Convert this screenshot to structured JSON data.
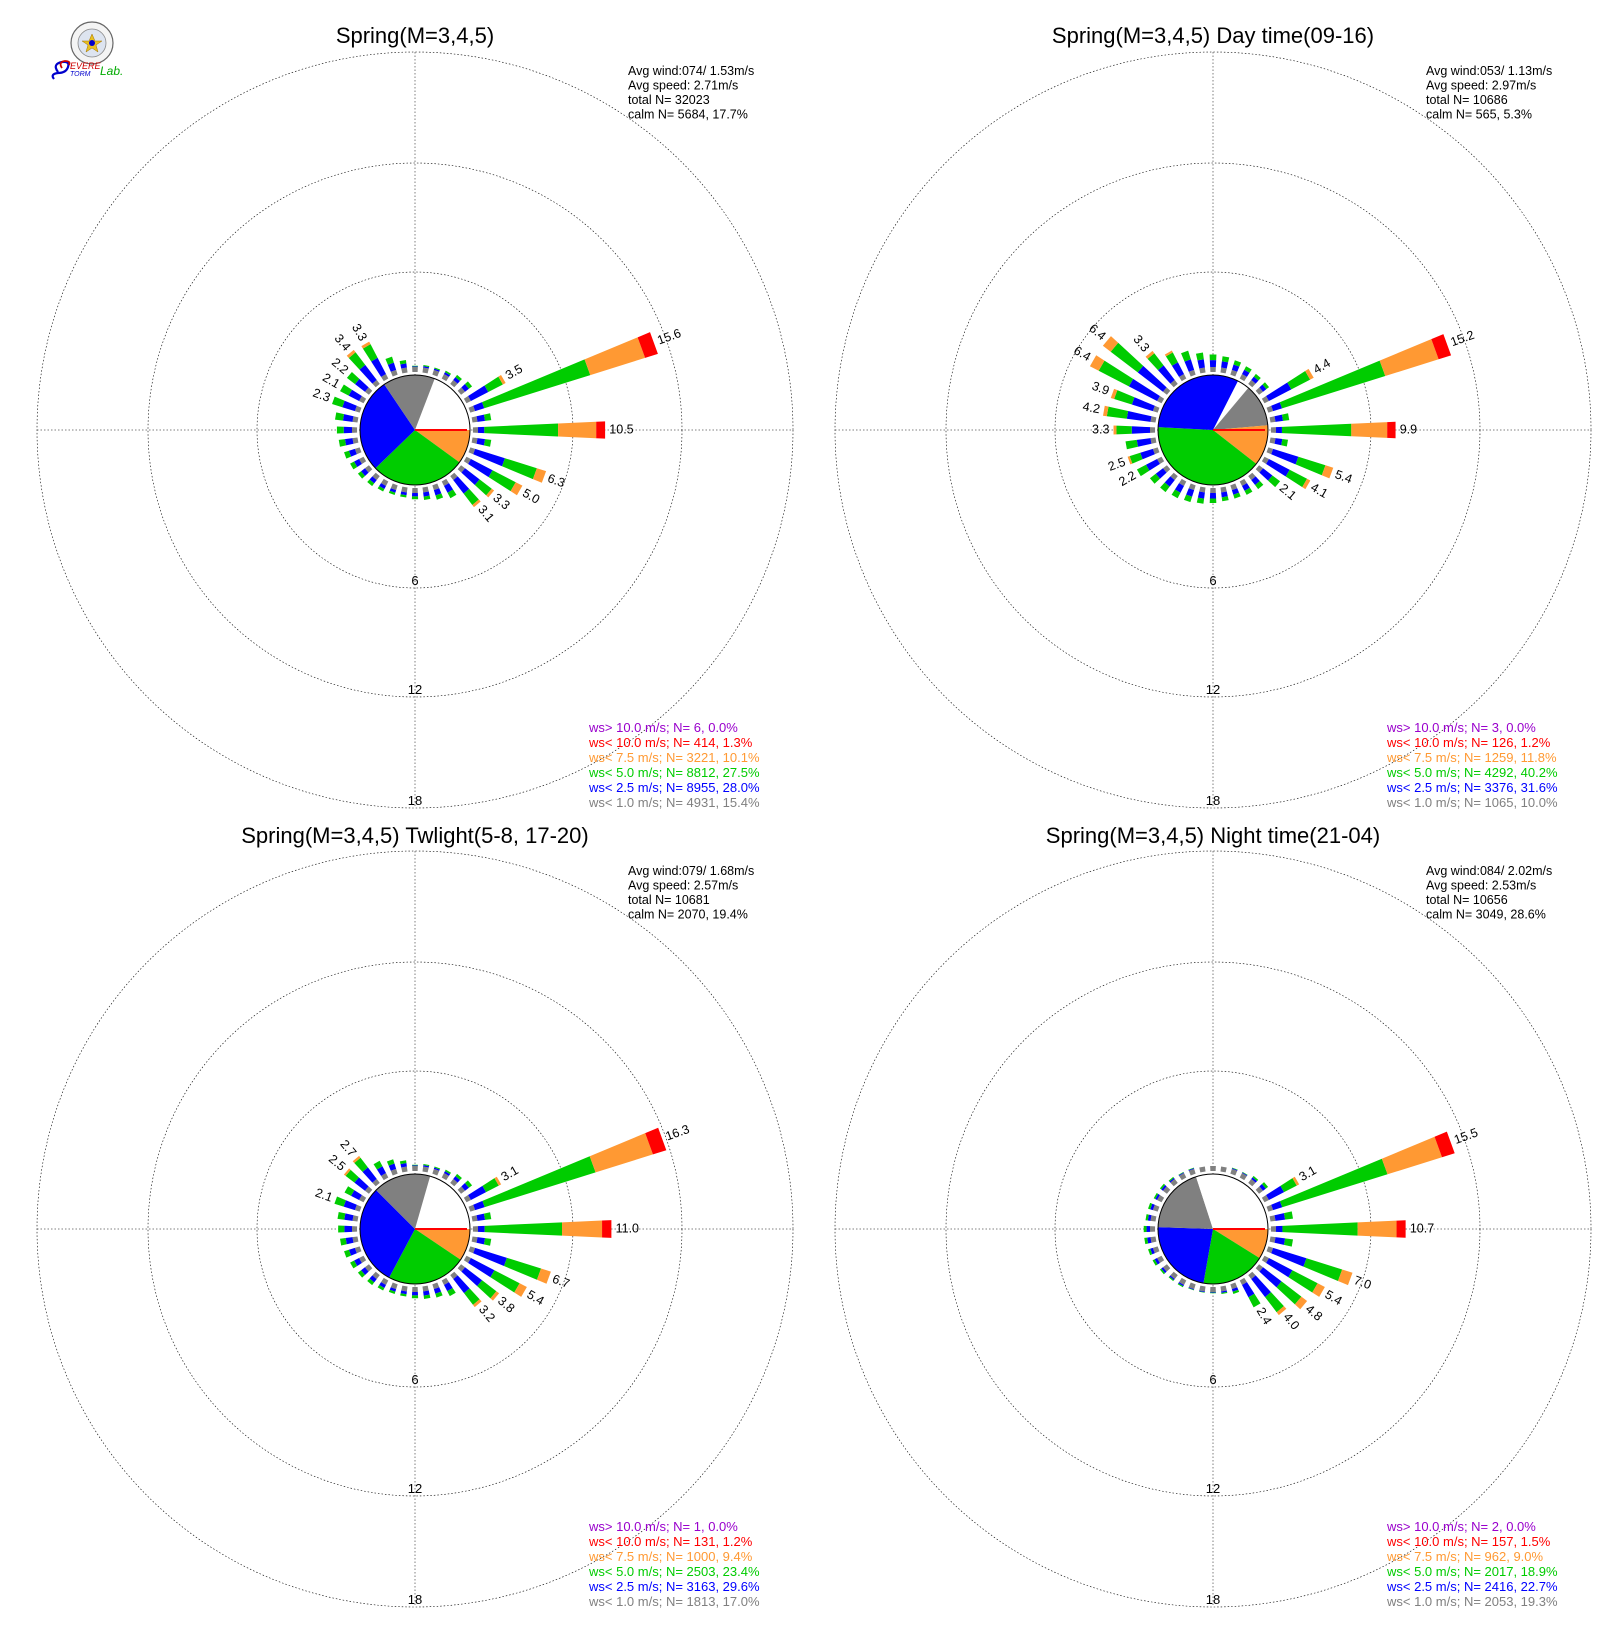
{
  "logo": {
    "text": "Severe Storm Lab.",
    "colors": {
      "blue": "#0000cc",
      "red": "#cc0000",
      "green": "#00aa00",
      "gold": "#e8c020"
    }
  },
  "colors": {
    "ws_gt10": "#9900cc",
    "ws_lt10": "#ff0000",
    "ws_lt75": "#ff9933",
    "ws_lt50": "#00cc00",
    "ws_lt25": "#0000ff",
    "ws_lt10calm": "#808080",
    "grid": "#000000"
  },
  "chart_data": [
    {
      "type": "polar-bar",
      "title": "Spring(M=3,4,5)",
      "ring_labels": [
        "6",
        "12",
        "18"
      ],
      "ring_values": [
        6,
        12,
        18
      ],
      "stats": [
        "Avg wind:074/ 1.53m/s",
        "Avg speed: 2.71m/s",
        "total N=     32023",
        "calm N=   5684,  17.7%"
      ],
      "legend": [
        {
          "label": "ws> 10.0 m/s; N=    6,  0.0%",
          "color": "#9900cc"
        },
        {
          "label": "ws< 10.0 m/s; N=  414,  1.3%",
          "color": "#ff0000"
        },
        {
          "label": "ws<  7.5 m/s; N= 3221, 10.1%",
          "color": "#ff9933"
        },
        {
          "label": "ws<  5.0 m/s; N= 8812, 27.5%",
          "color": "#00cc00"
        },
        {
          "label": "ws<  2.5 m/s; N= 8955, 28.0%",
          "color": "#0000ff"
        },
        {
          "label": "ws<  1.0 m/s; N= 4931, 15.4%",
          "color": "#808080"
        }
      ],
      "pie": [
        {
          "from": 0,
          "to": 90,
          "color": "#ffffff"
        },
        {
          "from": 90,
          "to": 126,
          "color": "#ff9933"
        },
        {
          "from": 126,
          "to": 226,
          "color": "#00cc00"
        },
        {
          "from": 226,
          "to": 326,
          "color": "#0000ff"
        },
        {
          "from": 326,
          "to": 381,
          "color": "#808080"
        }
      ],
      "bars": [
        {
          "dir": 0,
          "total": 0.5
        },
        {
          "dir": 10,
          "total": 0.6
        },
        {
          "dir": 20,
          "total": 0.6
        },
        {
          "dir": 30,
          "total": 0.7
        },
        {
          "dir": 40,
          "total": 0.9
        },
        {
          "dir": 50,
          "total": 1.1
        },
        {
          "dir": 60,
          "total": 3.5,
          "label": "3.5"
        },
        {
          "dir": 70,
          "total": 15.6,
          "label": "15.6"
        },
        {
          "dir": 80,
          "total": 1.5
        },
        {
          "dir": 90,
          "total": 10.5,
          "label": "10.5"
        },
        {
          "dir": 100,
          "total": 1.5
        },
        {
          "dir": 110,
          "total": 6.3,
          "label": "6.3"
        },
        {
          "dir": 120,
          "total": 5.0,
          "label": "5.0"
        },
        {
          "dir": 130,
          "total": 3.3,
          "label": "3.3"
        },
        {
          "dir": 140,
          "total": 3.1,
          "label": "3.1"
        },
        {
          "dir": 150,
          "total": 1.5
        },
        {
          "dir": 160,
          "total": 1.2
        },
        {
          "dir": 170,
          "total": 1.0
        },
        {
          "dir": 180,
          "total": 0.9
        },
        {
          "dir": 190,
          "total": 0.8
        },
        {
          "dir": 200,
          "total": 0.8
        },
        {
          "dir": 210,
          "total": 0.9
        },
        {
          "dir": 220,
          "total": 1.0
        },
        {
          "dir": 230,
          "total": 1.1
        },
        {
          "dir": 240,
          "total": 1.2
        },
        {
          "dir": 250,
          "total": 1.3
        },
        {
          "dir": 260,
          "total": 1.5
        },
        {
          "dir": 270,
          "total": 1.6
        },
        {
          "dir": 280,
          "total": 1.8
        },
        {
          "dir": 290,
          "total": 2.3,
          "label": "2.3"
        },
        {
          "dir": 300,
          "total": 2.1,
          "label": "2.1"
        },
        {
          "dir": 310,
          "total": 2.2,
          "label": "2.2"
        },
        {
          "dir": 320,
          "total": 3.4,
          "label": "3.4"
        },
        {
          "dir": 330,
          "total": 3.3,
          "label": "3.3"
        },
        {
          "dir": 340,
          "total": 1.5
        },
        {
          "dir": 350,
          "total": 1.0
        }
      ]
    },
    {
      "type": "polar-bar",
      "title": "Spring(M=3,4,5) Day time(09-16)",
      "ring_labels": [
        "6",
        "12",
        "18"
      ],
      "ring_values": [
        6,
        12,
        18
      ],
      "stats": [
        "Avg wind:053/ 1.13m/s",
        "Avg speed: 2.97m/s",
        "total N=     10686",
        "calm N=    565,   5.3%"
      ],
      "legend": [
        {
          "label": "ws> 10.0 m/s; N=    3,  0.0%",
          "color": "#9900cc"
        },
        {
          "label": "ws< 10.0 m/s; N=  126,  1.2%",
          "color": "#ff0000"
        },
        {
          "label": "ws<  7.5 m/s; N= 1259, 11.8%",
          "color": "#ff9933"
        },
        {
          "label": "ws<  5.0 m/s; N= 4292, 40.2%",
          "color": "#00cc00"
        },
        {
          "label": "ws<  2.5 m/s; N= 3376, 31.6%",
          "color": "#0000ff"
        },
        {
          "label": "ws<  1.0 m/s; N= 1065, 10.0%",
          "color": "#808080"
        }
      ],
      "pie": [
        {
          "from": 0,
          "to": 40,
          "color": "#ffffff"
        },
        {
          "from": 40,
          "to": 85,
          "color": "#808080"
        },
        {
          "from": 85,
          "to": 128,
          "color": "#ff9933"
        },
        {
          "from": 128,
          "to": 273,
          "color": "#00cc00"
        },
        {
          "from": 273,
          "to": 387,
          "color": "#0000ff"
        }
      ],
      "bars": [
        {
          "dir": 0,
          "total": 1.4
        },
        {
          "dir": 10,
          "total": 1.3
        },
        {
          "dir": 20,
          "total": 1.2
        },
        {
          "dir": 30,
          "total": 1.1
        },
        {
          "dir": 40,
          "total": 1.0
        },
        {
          "dir": 50,
          "total": 1.0
        },
        {
          "dir": 60,
          "total": 4.4,
          "label": "4.4"
        },
        {
          "dir": 70,
          "total": 15.2,
          "label": "15.2"
        },
        {
          "dir": 80,
          "total": 1.5
        },
        {
          "dir": 90,
          "total": 9.9,
          "label": "9.9"
        },
        {
          "dir": 100,
          "total": 1.4
        },
        {
          "dir": 110,
          "total": 5.4,
          "label": "5.4"
        },
        {
          "dir": 120,
          "total": 4.1,
          "label": "4.1"
        },
        {
          "dir": 130,
          "total": 2.1,
          "label": "2.1"
        },
        {
          "dir": 140,
          "total": 1.3
        },
        {
          "dir": 150,
          "total": 1.2
        },
        {
          "dir": 160,
          "total": 1.1
        },
        {
          "dir": 170,
          "total": 1.1
        },
        {
          "dir": 180,
          "total": 1.2
        },
        {
          "dir": 190,
          "total": 1.3
        },
        {
          "dir": 200,
          "total": 1.4
        },
        {
          "dir": 210,
          "total": 1.5
        },
        {
          "dir": 220,
          "total": 1.6
        },
        {
          "dir": 230,
          "total": 1.7
        },
        {
          "dir": 240,
          "total": 2.2,
          "label": "2.2"
        },
        {
          "dir": 250,
          "total": 2.5,
          "label": "2.5"
        },
        {
          "dir": 260,
          "total": 2.4
        },
        {
          "dir": 270,
          "total": 3.3,
          "label": "3.3"
        },
        {
          "dir": 280,
          "total": 4.2,
          "label": "4.2"
        },
        {
          "dir": 290,
          "total": 3.9,
          "label": "3.9"
        },
        {
          "dir": 300,
          "total": 6.4,
          "label": "6.4"
        },
        {
          "dir": 310,
          "total": 6.4,
          "label": "6.4"
        },
        {
          "dir": 320,
          "total": 3.3,
          "label": "3.3"
        },
        {
          "dir": 330,
          "total": 2.5
        },
        {
          "dir": 340,
          "total": 2.0
        },
        {
          "dir": 350,
          "total": 1.6
        }
      ]
    },
    {
      "type": "polar-bar",
      "title": "Spring(M=3,4,5) Twlight(5-8, 17-20)",
      "ring_labels": [
        "6",
        "12",
        "18"
      ],
      "ring_values": [
        6,
        12,
        18
      ],
      "stats": [
        "Avg wind:079/ 1.68m/s",
        "Avg speed: 2.57m/s",
        "total N=     10681",
        "calm N=   2070,  19.4%"
      ],
      "legend": [
        {
          "label": "ws> 10.0 m/s; N=    1,  0.0%",
          "color": "#9900cc"
        },
        {
          "label": "ws< 10.0 m/s; N=  131,  1.2%",
          "color": "#ff0000"
        },
        {
          "label": "ws<  7.5 m/s; N= 1000,  9.4%",
          "color": "#ff9933"
        },
        {
          "label": "ws<  5.0 m/s; N= 2503, 23.4%",
          "color": "#00cc00"
        },
        {
          "label": "ws<  2.5 m/s; N= 3163, 29.6%",
          "color": "#0000ff"
        },
        {
          "label": "ws<  1.0 m/s; N= 1813, 17.0%",
          "color": "#808080"
        }
      ],
      "pie": [
        {
          "from": 0,
          "to": 90,
          "color": "#ffffff"
        },
        {
          "from": 90,
          "to": 124,
          "color": "#ff9933"
        },
        {
          "from": 124,
          "to": 208,
          "color": "#00cc00"
        },
        {
          "from": 208,
          "to": 315,
          "color": "#0000ff"
        },
        {
          "from": 315,
          "to": 376,
          "color": "#808080"
        }
      ],
      "bars": [
        {
          "dir": 0,
          "total": 0.5
        },
        {
          "dir": 10,
          "total": 0.6
        },
        {
          "dir": 20,
          "total": 0.6
        },
        {
          "dir": 30,
          "total": 0.7
        },
        {
          "dir": 40,
          "total": 0.9
        },
        {
          "dir": 50,
          "total": 1.1
        },
        {
          "dir": 60,
          "total": 3.1,
          "label": "3.1"
        },
        {
          "dir": 70,
          "total": 16.3,
          "label": "16.3"
        },
        {
          "dir": 80,
          "total": 1.5
        },
        {
          "dir": 90,
          "total": 11.0,
          "label": "11.0"
        },
        {
          "dir": 100,
          "total": 1.5
        },
        {
          "dir": 110,
          "total": 6.7,
          "label": "6.7"
        },
        {
          "dir": 120,
          "total": 5.4,
          "label": "5.4"
        },
        {
          "dir": 130,
          "total": 3.8,
          "label": "3.8"
        },
        {
          "dir": 140,
          "total": 3.2,
          "label": "3.2"
        },
        {
          "dir": 150,
          "total": 1.4
        },
        {
          "dir": 160,
          "total": 1.1
        },
        {
          "dir": 170,
          "total": 1.0
        },
        {
          "dir": 180,
          "total": 0.9
        },
        {
          "dir": 190,
          "total": 0.8
        },
        {
          "dir": 200,
          "total": 0.8
        },
        {
          "dir": 210,
          "total": 0.9
        },
        {
          "dir": 220,
          "total": 1.0
        },
        {
          "dir": 230,
          "total": 1.1
        },
        {
          "dir": 240,
          "total": 1.2
        },
        {
          "dir": 250,
          "total": 1.3
        },
        {
          "dir": 260,
          "total": 1.4
        },
        {
          "dir": 270,
          "total": 1.5
        },
        {
          "dir": 280,
          "total": 1.6
        },
        {
          "dir": 290,
          "total": 2.1,
          "label": "2.1"
        },
        {
          "dir": 300,
          "total": 1.7
        },
        {
          "dir": 310,
          "total": 2.5,
          "label": "2.5"
        },
        {
          "dir": 320,
          "total": 2.7,
          "label": "2.7"
        },
        {
          "dir": 330,
          "total": 1.5
        },
        {
          "dir": 340,
          "total": 1.2
        },
        {
          "dir": 350,
          "total": 0.9
        }
      ]
    },
    {
      "type": "polar-bar",
      "title": "Spring(M=3,4,5) Night time(21-04)",
      "ring_labels": [
        "6",
        "12",
        "18"
      ],
      "ring_values": [
        6,
        12,
        18
      ],
      "stats": [
        "Avg wind:084/ 2.02m/s",
        "Avg speed: 2.53m/s",
        "total N=     10656",
        "calm N=   3049,  28.6%"
      ],
      "legend": [
        {
          "label": "ws> 10.0 m/s; N=    2,  0.0%",
          "color": "#9900cc"
        },
        {
          "label": "ws< 10.0 m/s; N=  157,  1.5%",
          "color": "#ff0000"
        },
        {
          "label": "ws<  7.5 m/s; N=  962,  9.0%",
          "color": "#ff9933"
        },
        {
          "label": "ws<  5.0 m/s; N= 2017, 18.9%",
          "color": "#00cc00"
        },
        {
          "label": "ws<  2.5 m/s; N= 2416, 22.7%",
          "color": "#0000ff"
        },
        {
          "label": "ws<  1.0 m/s; N= 2053, 19.3%",
          "color": "#808080"
        }
      ],
      "pie": [
        {
          "from": 0,
          "to": 90,
          "color": "#ffffff"
        },
        {
          "from": 90,
          "to": 122,
          "color": "#ff9933"
        },
        {
          "from": 122,
          "to": 190,
          "color": "#00cc00"
        },
        {
          "from": 190,
          "to": 272,
          "color": "#0000ff"
        },
        {
          "from": 272,
          "to": 342,
          "color": "#808080"
        },
        {
          "from": 342,
          "to": 360,
          "color": "#ffffff"
        }
      ],
      "bars": [
        {
          "dir": 0,
          "total": 0.4
        },
        {
          "dir": 10,
          "total": 0.4
        },
        {
          "dir": 20,
          "total": 0.5
        },
        {
          "dir": 30,
          "total": 0.5
        },
        {
          "dir": 40,
          "total": 0.7
        },
        {
          "dir": 50,
          "total": 0.9
        },
        {
          "dir": 60,
          "total": 3.1,
          "label": "3.1"
        },
        {
          "dir": 70,
          "total": 15.5,
          "label": "15.5"
        },
        {
          "dir": 80,
          "total": 1.8
        },
        {
          "dir": 90,
          "total": 10.7,
          "label": "10.7"
        },
        {
          "dir": 100,
          "total": 1.8
        },
        {
          "dir": 110,
          "total": 7.0,
          "label": "7.0"
        },
        {
          "dir": 120,
          "total": 5.4,
          "label": "5.4"
        },
        {
          "dir": 130,
          "total": 4.8,
          "label": "4.8"
        },
        {
          "dir": 140,
          "total": 4.0,
          "label": "4.0"
        },
        {
          "dir": 150,
          "total": 2.4,
          "label": "2.4"
        },
        {
          "dir": 160,
          "total": 0.8
        },
        {
          "dir": 170,
          "total": 0.6
        },
        {
          "dir": 180,
          "total": 0.5
        },
        {
          "dir": 190,
          "total": 0.5
        },
        {
          "dir": 200,
          "total": 0.5
        },
        {
          "dir": 210,
          "total": 0.6
        },
        {
          "dir": 220,
          "total": 0.6
        },
        {
          "dir": 230,
          "total": 0.7
        },
        {
          "dir": 240,
          "total": 0.8
        },
        {
          "dir": 250,
          "total": 0.8
        },
        {
          "dir": 260,
          "total": 0.9
        },
        {
          "dir": 270,
          "total": 0.9
        },
        {
          "dir": 280,
          "total": 0.8
        },
        {
          "dir": 290,
          "total": 0.8
        },
        {
          "dir": 300,
          "total": 0.7
        },
        {
          "dir": 310,
          "total": 0.7
        },
        {
          "dir": 320,
          "total": 0.6
        },
        {
          "dir": 330,
          "total": 0.5
        },
        {
          "dir": 340,
          "total": 0.5
        },
        {
          "dir": 350,
          "total": 0.4
        }
      ]
    }
  ]
}
